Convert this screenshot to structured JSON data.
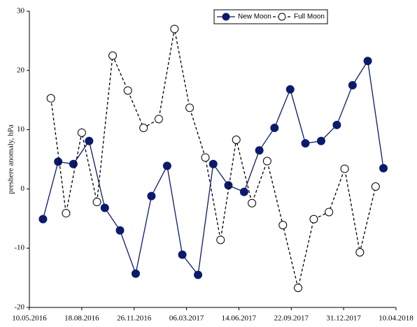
{
  "chart_data": {
    "type": "line",
    "y_label": "preshere anomaly, hPa",
    "xlim": [
      "10.05.2016",
      "10.04.2018"
    ],
    "xticks": [
      "10.05.2016",
      "18.08.2016",
      "26.11.2016",
      "06.03.2017",
      "14.06.2017",
      "22.09.2017",
      "31.12.2017",
      "10.04.2018"
    ],
    "ylim": [
      -20,
      30
    ],
    "yticks": [
      -20,
      -10,
      0,
      10,
      20,
      30
    ],
    "grid": false,
    "legend": "top-right",
    "series": [
      {
        "name": "New Moon",
        "color": "#0a1a6e",
        "marker": "filled",
        "dashed": false,
        "x": [
          "05.06.2016",
          "04.07.2016",
          "02.08.2016",
          "01.09.2016",
          "01.10.2016",
          "30.10.2016",
          "29.11.2016",
          "29.12.2016",
          "28.01.2017",
          "26.02.2017",
          "28.03.2017",
          "26.04.2017",
          "25.05.2017",
          "24.06.2017",
          "23.07.2017",
          "21.08.2017",
          "20.09.2017",
          "19.10.2017",
          "18.11.2017",
          "18.12.2017",
          "17.01.2018",
          "15.02.2018",
          "17.03.2018"
        ],
        "values": [
          -5.1,
          4.6,
          4.2,
          8.1,
          -3.2,
          -7.0,
          -14.3,
          -1.2,
          3.9,
          -11.1,
          -14.5,
          4.2,
          0.6,
          -0.5,
          6.5,
          10.3,
          16.8,
          7.7,
          8.1,
          10.8,
          17.5,
          21.6,
          3.5
        ]
      },
      {
        "name": "Full Moon",
        "color": "#000000",
        "marker": "open",
        "dashed": true,
        "x": [
          "20.06.2016",
          "19.07.2016",
          "18.08.2016",
          "16.09.2016",
          "16.10.2016",
          "14.11.2016",
          "14.12.2016",
          "12.01.2017",
          "11.02.2017",
          "12.03.2017",
          "11.04.2017",
          "10.05.2017",
          "09.06.2017",
          "09.07.2017",
          "07.08.2017",
          "06.09.2017",
          "05.10.2017",
          "04.11.2017",
          "03.12.2017",
          "02.01.2018",
          "31.01.2018",
          "02.03.2018"
        ],
        "values": [
          15.3,
          -4.1,
          9.5,
          -2.2,
          22.5,
          16.6,
          10.3,
          11.8,
          27.0,
          13.7,
          5.3,
          -8.6,
          8.3,
          -2.4,
          4.7,
          -6.1,
          -16.7,
          -5.1,
          -3.9,
          3.4,
          -10.7,
          0.4
        ]
      }
    ]
  }
}
